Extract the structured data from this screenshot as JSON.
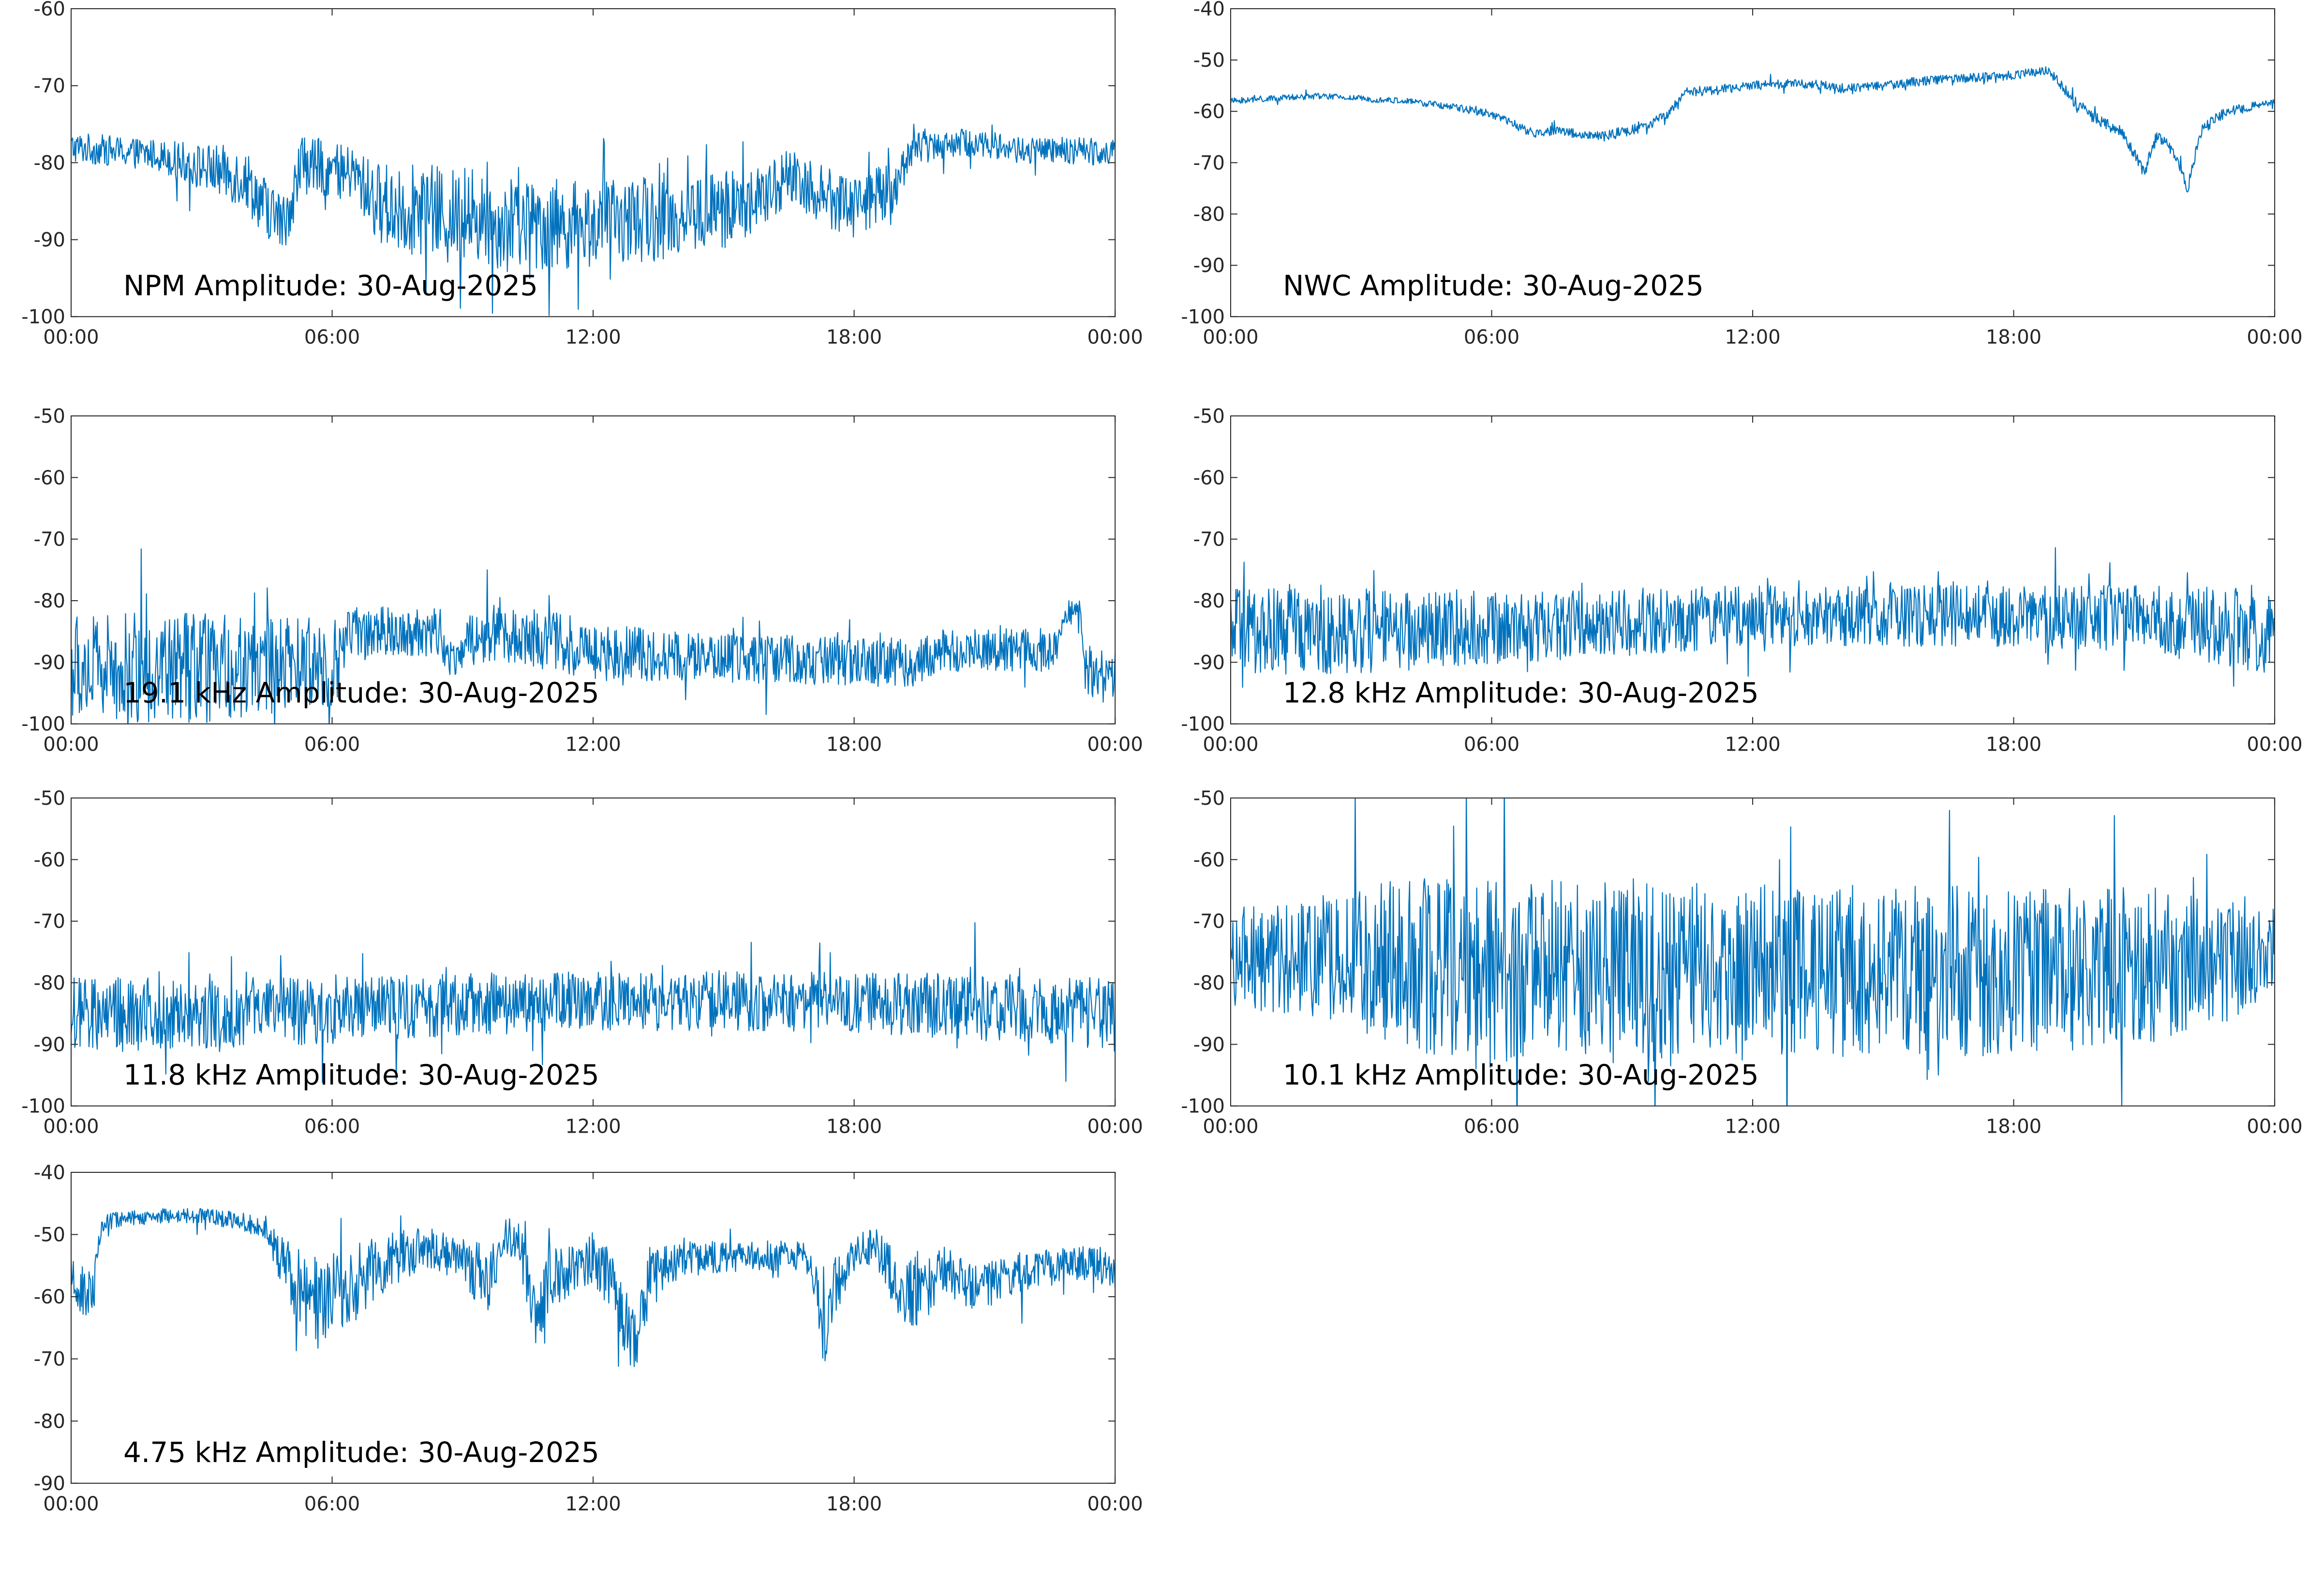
{
  "figure": {
    "line_color": "#0072BD",
    "axis_color": "#262626",
    "background": "#ffffff"
  },
  "chart_data": [
    {
      "type": "line",
      "title": "NPM Amplitude: 30-Aug-2025",
      "xlabel": "",
      "ylabel": "",
      "xlim": [
        "00:00",
        "00:00"
      ],
      "xticks": [
        "00:00",
        "06:00",
        "12:00",
        "18:00",
        "00:00"
      ],
      "ylim": [
        -100,
        -60
      ],
      "yticks": [
        -60,
        -70,
        -80,
        -90,
        -100
      ],
      "grid": false,
      "series": [
        {
          "x_hours": [
            0,
            1,
            2,
            3,
            4,
            4.5,
            4.9,
            5.3,
            6,
            6.5,
            7,
            7.5,
            8,
            9,
            10,
            11,
            12,
            13,
            14,
            15,
            16,
            16.5,
            17,
            17.5,
            18,
            18.5,
            19,
            19.3,
            20,
            21,
            22,
            23,
            24
          ],
          "y": [
            -78,
            -78.5,
            -79,
            -80.5,
            -82,
            -86,
            -88,
            -80,
            -81,
            -81.5,
            -85,
            -86,
            -86,
            -87,
            -88,
            -88,
            -88,
            -87.5,
            -87,
            -86,
            -84.5,
            -81.5,
            -83,
            -85,
            -85,
            -84.5,
            -83,
            -78,
            -77.5,
            -77.5,
            -78.5,
            -78.5,
            -78.5
          ],
          "spread": [
            2,
            2,
            2,
            3,
            4,
            4,
            4,
            4,
            3.5,
            3.5,
            5,
            6,
            6,
            6,
            6,
            6,
            5.5,
            5.5,
            5.5,
            5,
            4,
            4,
            4,
            4,
            4,
            4,
            3,
            2.5,
            2,
            1.8,
            1.8,
            1.8,
            1.8
          ]
        }
      ]
    },
    {
      "type": "line",
      "title": "NWC Amplitude: 30-Aug-2025",
      "xlabel": "",
      "ylabel": "",
      "xlim": [
        "00:00",
        "00:00"
      ],
      "xticks": [
        "00:00",
        "06:00",
        "12:00",
        "18:00",
        "00:00"
      ],
      "ylim": [
        -100,
        -40
      ],
      "yticks": [
        -40,
        -50,
        -60,
        -70,
        -80,
        -90,
        -100
      ],
      "grid": false,
      "series": [
        {
          "x_hours": [
            0,
            1,
            2,
            3,
            4,
            5,
            6,
            6.5,
            7,
            7.5,
            8,
            8.5,
            9,
            9.5,
            10,
            10.5,
            11,
            12,
            13,
            13.7,
            14,
            15,
            16,
            17,
            18,
            18.8,
            19.5,
            20,
            20.5,
            21,
            21.3,
            21.7,
            22,
            22.3,
            22.7,
            23,
            23.5,
            24
          ],
          "y": [
            -58,
            -57.5,
            -57,
            -57.5,
            -58,
            -59,
            -60.5,
            -62.5,
            -64.5,
            -63.5,
            -64.5,
            -65,
            -64,
            -63,
            -61,
            -56,
            -56,
            -55,
            -54.5,
            -55,
            -55.5,
            -55,
            -54,
            -53.5,
            -53,
            -52,
            -59,
            -62,
            -64,
            -72,
            -64.5,
            -68,
            -75,
            -64,
            -61,
            -60,
            -59,
            -58
          ],
          "spread": [
            0.6,
            0.6,
            0.6,
            0.6,
            0.6,
            0.7,
            0.8,
            0.9,
            1,
            1,
            1,
            1,
            1,
            1,
            1,
            1,
            1,
            0.9,
            0.9,
            0.9,
            0.9,
            0.9,
            0.9,
            0.9,
            0.9,
            0.9,
            1.2,
            1.2,
            1.2,
            1.2,
            1.2,
            1.2,
            1.2,
            1.2,
            1,
            1,
            0.8,
            0.6
          ]
        }
      ]
    },
    {
      "type": "line",
      "title": "19.1 kHz Amplitude: 30-Aug-2025",
      "xlabel": "",
      "ylabel": "",
      "xlim": [
        "00:00",
        "00:00"
      ],
      "xticks": [
        "00:00",
        "06:00",
        "12:00",
        "18:00",
        "00:00"
      ],
      "ylim": [
        -100,
        -50
      ],
      "yticks": [
        -50,
        -60,
        -70,
        -80,
        -90,
        -100
      ],
      "grid": false,
      "series": [
        {
          "x_hours": [
            0,
            3,
            6.2,
            6.3,
            8.5,
            8.6,
            9,
            9.1,
            10,
            12,
            14,
            18,
            19.5,
            20,
            22.7,
            22.8,
            23.2,
            23.3,
            24
          ],
          "y": [
            -91,
            -91,
            -90,
            -85,
            -85,
            -89,
            -89,
            -86,
            -85,
            -88,
            -89,
            -90,
            -90,
            -88,
            -88,
            -82,
            -82,
            -92,
            -92
          ],
          "spread": [
            9,
            9,
            7,
            4,
            4,
            3,
            3,
            4,
            5,
            5,
            4,
            4,
            4,
            3.5,
            3.5,
            2,
            2,
            4,
            4
          ]
        }
      ]
    },
    {
      "type": "line",
      "title": "12.8 kHz Amplitude: 30-Aug-2025",
      "xlabel": "",
      "ylabel": "",
      "xlim": [
        "00:00",
        "00:00"
      ],
      "xticks": [
        "00:00",
        "06:00",
        "12:00",
        "18:00",
        "00:00"
      ],
      "ylim": [
        -100,
        -50
      ],
      "yticks": [
        -50,
        -60,
        -70,
        -80,
        -90,
        -100
      ],
      "grid": false,
      "series": [
        {
          "x_hours": [
            0,
            3,
            6,
            9,
            12,
            15,
            18,
            21,
            24
          ],
          "y": [
            -85,
            -85,
            -84.5,
            -83.5,
            -82.5,
            -82.5,
            -82.5,
            -83,
            -85
          ],
          "spread": [
            7,
            7,
            6,
            5.5,
            5,
            5,
            5,
            5.5,
            7
          ]
        }
      ]
    },
    {
      "type": "line",
      "title": "11.8 kHz Amplitude: 30-Aug-2025",
      "xlabel": "",
      "ylabel": "",
      "xlim": [
        "00:00",
        "00:00"
      ],
      "xticks": [
        "00:00",
        "06:00",
        "12:00",
        "18:00",
        "00:00"
      ],
      "ylim": [
        -100,
        -50
      ],
      "yticks": [
        -50,
        -60,
        -70,
        -80,
        -90,
        -100
      ],
      "grid": false,
      "series": [
        {
          "x_hours": [
            0,
            3,
            6,
            9,
            12,
            15,
            18,
            21,
            24
          ],
          "y": [
            -85,
            -85,
            -84.5,
            -83.5,
            -83,
            -83,
            -83,
            -84,
            -85
          ],
          "spread": [
            6,
            6,
            5.5,
            5,
            5,
            5,
            5,
            5.5,
            6
          ]
        }
      ]
    },
    {
      "type": "line",
      "title": "10.1 kHz Amplitude: 30-Aug-2025",
      "xlabel": "",
      "ylabel": "",
      "xlim": [
        "00:00",
        "00:00"
      ],
      "xticks": [
        "00:00",
        "06:00",
        "12:00",
        "18:00",
        "00:00"
      ],
      "ylim": [
        -100,
        -50
      ],
      "yticks": [
        -50,
        -60,
        -70,
        -80,
        -90,
        -100
      ],
      "grid": false,
      "series": [
        {
          "x_hours": [
            0,
            2,
            4,
            6,
            9,
            12,
            15,
            18,
            21,
            24
          ],
          "y": [
            -76,
            -76,
            -77,
            -78,
            -78,
            -78,
            -78,
            -78,
            -77,
            -76
          ],
          "spread": [
            8,
            10,
            14,
            15,
            15,
            14,
            14,
            14,
            13,
            8
          ]
        }
      ]
    },
    {
      "type": "line",
      "title": "4.75 kHz Amplitude: 30-Aug-2025",
      "xlabel": "",
      "ylabel": "",
      "xlim": [
        "00:00",
        "00:00"
      ],
      "xticks": [
        "00:00",
        "06:00",
        "12:00",
        "18:00",
        "00:00"
      ],
      "ylim": [
        -90,
        -40
      ],
      "yticks": [
        -40,
        -50,
        -60,
        -70,
        -80,
        -90
      ],
      "grid": false,
      "series": [
        {
          "x_hours": [
            0,
            0.5,
            0.7,
            1.2,
            2,
            3,
            4,
            4.5,
            5,
            5.5,
            6,
            6.5,
            7,
            8,
            9,
            9.5,
            10,
            10.3,
            10.7,
            11,
            11.5,
            12,
            12.5,
            12.9,
            13.3,
            14,
            15,
            16,
            17,
            17.3,
            17.6,
            18,
            18.5,
            19,
            19.5,
            20,
            20.5,
            21,
            22,
            23,
            24
          ],
          "y": [
            -58,
            -60,
            -48,
            -47.5,
            -47,
            -47,
            -48,
            -49,
            -57,
            -61,
            -60,
            -59,
            -55,
            -53,
            -53,
            -59,
            -50,
            -52,
            -62,
            -57,
            -56,
            -54,
            -58,
            -68,
            -57,
            -54,
            -53.5,
            -53.5,
            -53.5,
            -66,
            -58,
            -52,
            -52,
            -58,
            -61,
            -55,
            -58,
            -58,
            -56,
            -54.5,
            -56
          ],
          "spread": [
            4,
            4,
            1.5,
            1.2,
            1.2,
            1.2,
            1.5,
            2,
            6,
            8,
            7,
            6,
            5,
            4,
            4,
            5,
            3,
            4,
            6,
            5,
            4,
            4,
            5,
            6,
            5,
            3,
            2.5,
            2.5,
            2.5,
            6,
            5,
            3,
            3,
            5,
            6,
            4,
            4,
            4,
            3,
            3,
            3
          ]
        }
      ]
    }
  ]
}
